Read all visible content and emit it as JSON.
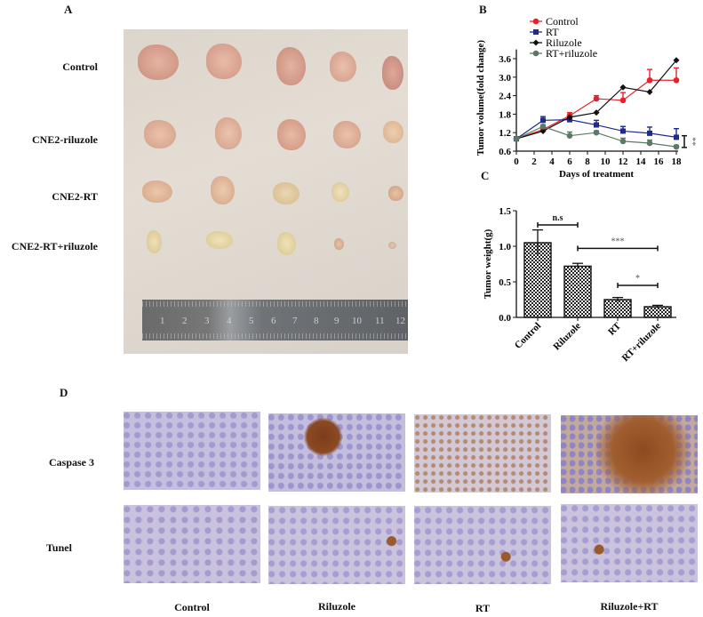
{
  "panels": {
    "A": {
      "letter": "A",
      "row_labels": [
        "Control",
        "CNE2-riluzole",
        "CNE2-RT",
        "CNE2-RT+riluzole"
      ],
      "ruler_numbers": [
        "1",
        "2",
        "3",
        "4",
        "5",
        "6",
        "7",
        "8",
        "9",
        "10",
        "11",
        "12"
      ]
    },
    "B": {
      "letter": "B"
    },
    "C": {
      "letter": "C"
    },
    "D": {
      "letter": "D",
      "row_labels": [
        "Caspase 3",
        "Tunel"
      ],
      "column_labels": [
        "Control",
        "Riluzole",
        "RT",
        "Riluzole+RT"
      ]
    }
  },
  "chart_data": [
    {
      "type": "line",
      "panel": "B",
      "title": "",
      "xlabel": "Days of treatment",
      "ylabel": "Tumor volume(fold change)",
      "x": [
        0,
        3,
        6,
        9,
        12,
        15,
        18
      ],
      "xticks": [
        0,
        2,
        4,
        6,
        8,
        10,
        12,
        14,
        16,
        18
      ],
      "yticks": [
        0.6,
        1.2,
        1.8,
        2.4,
        3.0,
        3.6
      ],
      "xlim": [
        0,
        18
      ],
      "ylim": [
        0.6,
        3.9
      ],
      "legend_position": "top-left",
      "series": [
        {
          "name": "Control",
          "color": "#e8202a",
          "marker": "circle",
          "values": [
            1.0,
            1.3,
            1.75,
            2.3,
            2.25,
            2.9,
            2.9
          ],
          "errors": [
            0,
            0.05,
            0.1,
            0.1,
            0.25,
            0.35,
            0.4
          ]
        },
        {
          "name": "RT",
          "color": "#1f2a8c",
          "marker": "square",
          "values": [
            1.0,
            1.6,
            1.62,
            1.45,
            1.25,
            1.18,
            1.05
          ],
          "errors": [
            0,
            0.12,
            0.08,
            0.15,
            0.15,
            0.2,
            0.28
          ]
        },
        {
          "name": "Riluzole",
          "color": "#111111",
          "marker": "diamond",
          "values": [
            1.0,
            1.25,
            1.7,
            1.85,
            2.67,
            2.52,
            3.55
          ],
          "errors": [
            0,
            0,
            0,
            0,
            0,
            0,
            0
          ]
        },
        {
          "name": "RT+riluzole",
          "color": "#5a7a66",
          "marker": "circle",
          "values": [
            1.0,
            1.4,
            1.1,
            1.2,
            0.92,
            0.86,
            0.74
          ],
          "errors": [
            0,
            0.05,
            0.12,
            0.06,
            0.1,
            0.1,
            0.05
          ]
        }
      ],
      "annotations": [
        "**"
      ]
    },
    {
      "type": "bar",
      "panel": "C",
      "title": "",
      "xlabel": "",
      "ylabel": "Tumor weight(g)",
      "categories": [
        "Control",
        "Riluzole",
        "RT",
        "RT+riluzole"
      ],
      "values": [
        1.05,
        0.72,
        0.25,
        0.15
      ],
      "errors": [
        0.18,
        0.04,
        0.03,
        0.02
      ],
      "yticks": [
        0.0,
        0.5,
        1.0,
        1.5
      ],
      "ylim": [
        0,
        1.5
      ],
      "grid": false,
      "annotations": [
        {
          "label": "n.s",
          "from": "Control",
          "to": "Riluzole"
        },
        {
          "label": "***",
          "from": "Riluzole",
          "to": "RT+riluzole"
        },
        {
          "label": "*",
          "from": "RT",
          "to": "RT+riluzole"
        }
      ]
    }
  ]
}
